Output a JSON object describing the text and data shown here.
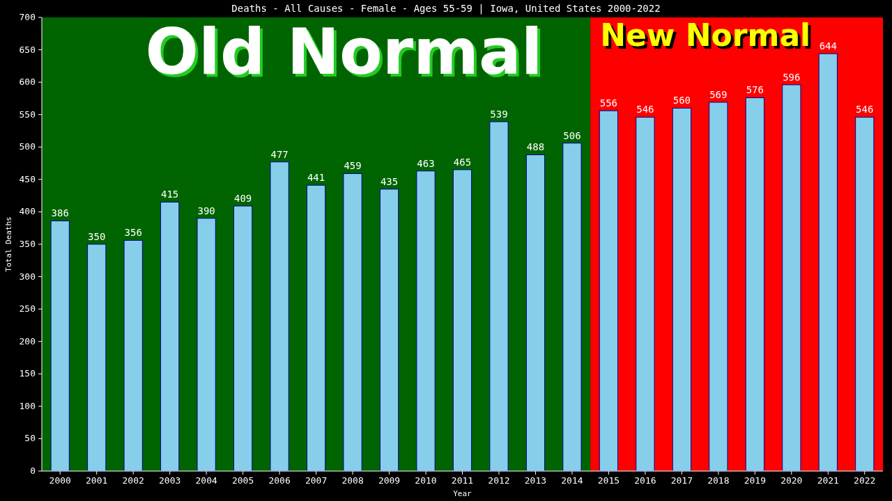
{
  "chart_data": {
    "type": "bar",
    "title": "Deaths - All Causes - Female - Ages 55-59 | Iowa, United States 2000-2022",
    "xlabel": "Year",
    "ylabel": "Total Deaths",
    "categories": [
      "2000",
      "2001",
      "2002",
      "2003",
      "2004",
      "2005",
      "2006",
      "2007",
      "2008",
      "2009",
      "2010",
      "2011",
      "2012",
      "2013",
      "2014",
      "2015",
      "2016",
      "2017",
      "2018",
      "2019",
      "2020",
      "2021",
      "2022"
    ],
    "values": [
      386,
      350,
      356,
      415,
      390,
      409,
      477,
      441,
      459,
      435,
      463,
      465,
      539,
      488,
      506,
      556,
      546,
      560,
      569,
      576,
      596,
      644,
      546
    ],
    "color": "#87ceeb",
    "ylim": [
      0,
      700
    ],
    "yticks": [
      0,
      50,
      100,
      150,
      200,
      250,
      300,
      350,
      400,
      450,
      500,
      550,
      600,
      650,
      700
    ],
    "data_labels": true,
    "grid": false,
    "bands": [
      {
        "axis": "x",
        "from": "2000",
        "to": "2014",
        "label": "Old Normal",
        "color": "#006400"
      },
      {
        "axis": "x",
        "from": "2015",
        "to": "2022",
        "label": "New Normal",
        "color": "#ff0000"
      }
    ]
  }
}
